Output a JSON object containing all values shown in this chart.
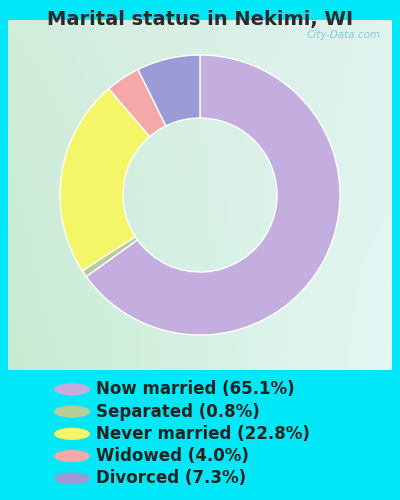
{
  "title": "Marital status in Nekimi, WI",
  "slices": [
    65.1,
    0.8,
    22.8,
    4.0,
    7.3
  ],
  "labels": [
    "Now married (65.1%)",
    "Separated (0.8%)",
    "Never married (22.8%)",
    "Widowed (4.0%)",
    "Divorced (7.3%)"
  ],
  "colors": [
    "#c4aee0",
    "#b8cc9a",
    "#f5f568",
    "#f4a8a8",
    "#9b9bd8"
  ],
  "background_color": "#00e8f8",
  "title_color": "#2a2a2a",
  "title_fontsize": 14,
  "legend_fontsize": 12,
  "watermark": "City-Data.com",
  "chart_bg_tl": [
    0.82,
    0.93,
    0.86
  ],
  "chart_bg_tr": [
    0.88,
    0.95,
    0.94
  ],
  "chart_bg_bl": [
    0.78,
    0.92,
    0.82
  ],
  "chart_bg_br": [
    0.9,
    0.97,
    0.96
  ],
  "donut_width": 0.45
}
